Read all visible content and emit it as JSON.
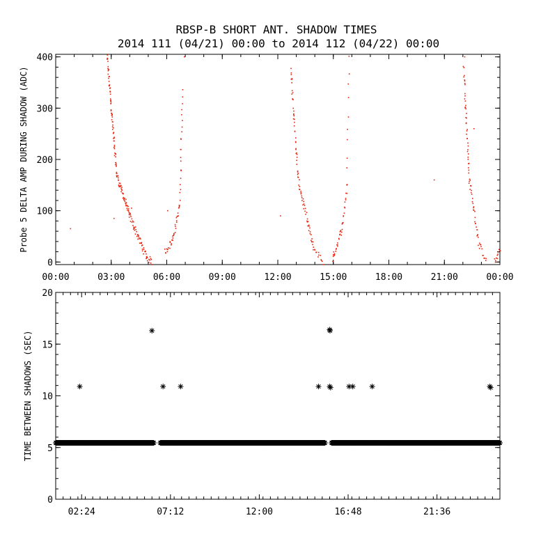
{
  "title_line1": "RBSP-B SHORT ANT. SHADOW TIMES",
  "title_line2": "2014 111 (04/21) 00:00 to 2014 112 (04/22) 00:00",
  "colors": {
    "upper_points": "#e8220b",
    "lower_points": "#000000",
    "axes": "#000000"
  },
  "chart_data": [
    {
      "type": "scatter",
      "title": "RBSP-B SHORT ANT. SHADOW TIMES",
      "subtitle": "2014 111 (04/21) 00:00 to 2014 112 (04/22) 00:00",
      "xlabel": "",
      "ylabel": "Probe 5 DELTA AMP DURING SHADOW (ADC)",
      "xlim": [
        0,
        24
      ],
      "ylim": [
        -5,
        405
      ],
      "x_unit": "hours",
      "xtick_values": [
        0,
        3,
        6,
        9,
        12,
        15,
        18,
        21,
        24
      ],
      "xtick_labels": [
        "00:00",
        "03:00",
        "06:00",
        "09:00",
        "12:00",
        "15:00",
        "18:00",
        "21:00",
        "00:00"
      ],
      "ytick_values": [
        0,
        100,
        200,
        300,
        400
      ],
      "ytick_labels": [
        "0",
        "100",
        "200",
        "300",
        "400"
      ],
      "grid": false,
      "marker": "dot",
      "segments": [
        {
          "x0": 2.78,
          "x1": 3.3,
          "y0": 400,
          "y1": 170,
          "n": 70
        },
        {
          "x0": 3.3,
          "x1": 4.0,
          "y0": 170,
          "y1": 90,
          "n": 50
        },
        {
          "x0": 4.0,
          "x1": 4.9,
          "y0": 90,
          "y1": 10,
          "n": 45
        },
        {
          "x0": 4.9,
          "x1": 5.2,
          "y0": 10,
          "y1": 0,
          "n": 12
        },
        {
          "x0": 5.9,
          "x1": 6.3,
          "y0": 20,
          "y1": 40,
          "n": 14
        },
        {
          "x0": 6.3,
          "x1": 6.7,
          "y0": 40,
          "y1": 110,
          "n": 22
        },
        {
          "x0": 6.7,
          "x1": 6.85,
          "y0": 110,
          "y1": 330,
          "n": 22
        },
        {
          "x0": 12.7,
          "x1": 13.1,
          "y0": 380,
          "y1": 160,
          "n": 40
        },
        {
          "x0": 13.1,
          "x1": 13.9,
          "y0": 160,
          "y1": 30,
          "n": 40
        },
        {
          "x0": 13.9,
          "x1": 14.45,
          "y0": 30,
          "y1": 0,
          "n": 14
        },
        {
          "x0": 14.95,
          "x1": 15.5,
          "y0": 5,
          "y1": 70,
          "n": 25
        },
        {
          "x0": 15.5,
          "x1": 15.75,
          "y0": 70,
          "y1": 150,
          "n": 15
        },
        {
          "x0": 15.75,
          "x1": 15.85,
          "y0": 150,
          "y1": 400,
          "n": 10
        },
        {
          "x0": 22.05,
          "x1": 22.35,
          "y0": 380,
          "y1": 160,
          "n": 40
        },
        {
          "x0": 22.35,
          "x1": 22.9,
          "y0": 160,
          "y1": 30,
          "n": 30
        },
        {
          "x0": 22.9,
          "x1": 23.25,
          "y0": 30,
          "y1": 5,
          "n": 10
        },
        {
          "x0": 23.7,
          "x1": 24.0,
          "y0": 0,
          "y1": 20,
          "n": 10
        }
      ],
      "isolated_points": [
        {
          "x": 0.8,
          "y": 65
        },
        {
          "x": 3.15,
          "y": 85
        },
        {
          "x": 4.1,
          "y": 105
        },
        {
          "x": 6.05,
          "y": 100
        },
        {
          "x": 12.15,
          "y": 90
        },
        {
          "x": 20.45,
          "y": 160
        },
        {
          "x": 22.6,
          "y": 260
        },
        {
          "x": 6.95,
          "y": 400
        },
        {
          "x": 22.1,
          "y": 400
        }
      ]
    },
    {
      "type": "scatter",
      "xlabel": "",
      "ylabel": "TIME BETWEEN SHADOWS (SEC)",
      "xlim": [
        0,
        24
      ],
      "ylim": [
        0,
        20
      ],
      "x_unit": "hours",
      "xtick_values": [
        1.4,
        6.2,
        11.0,
        15.8,
        20.6
      ],
      "xtick_labels": [
        "02:24",
        "07:12",
        "12:00",
        "16:48",
        "21:36"
      ],
      "ytick_values": [
        0,
        5,
        10,
        15,
        20
      ],
      "ytick_labels": [
        "0",
        "5",
        "10",
        "15",
        "20"
      ],
      "grid": false,
      "marker": "asterisk",
      "baseline_value": 5.45,
      "baseline_ranges": [
        [
          0,
          5.3
        ],
        [
          5.65,
          14.55
        ],
        [
          14.9,
          24
        ]
      ],
      "baseline_step": 0.02,
      "outliers": [
        {
          "x": 1.3,
          "y": 10.9
        },
        {
          "x": 5.2,
          "y": 16.3
        },
        {
          "x": 5.8,
          "y": 10.9
        },
        {
          "x": 6.75,
          "y": 10.9
        },
        {
          "x": 14.2,
          "y": 10.9
        },
        {
          "x": 14.8,
          "y": 16.4
        },
        {
          "x": 14.82,
          "y": 16.3
        },
        {
          "x": 14.8,
          "y": 10.9
        },
        {
          "x": 14.85,
          "y": 10.8
        },
        {
          "x": 15.85,
          "y": 10.9
        },
        {
          "x": 16.05,
          "y": 10.9
        },
        {
          "x": 17.1,
          "y": 10.9
        },
        {
          "x": 23.45,
          "y": 10.9
        },
        {
          "x": 23.5,
          "y": 10.8
        }
      ]
    }
  ]
}
